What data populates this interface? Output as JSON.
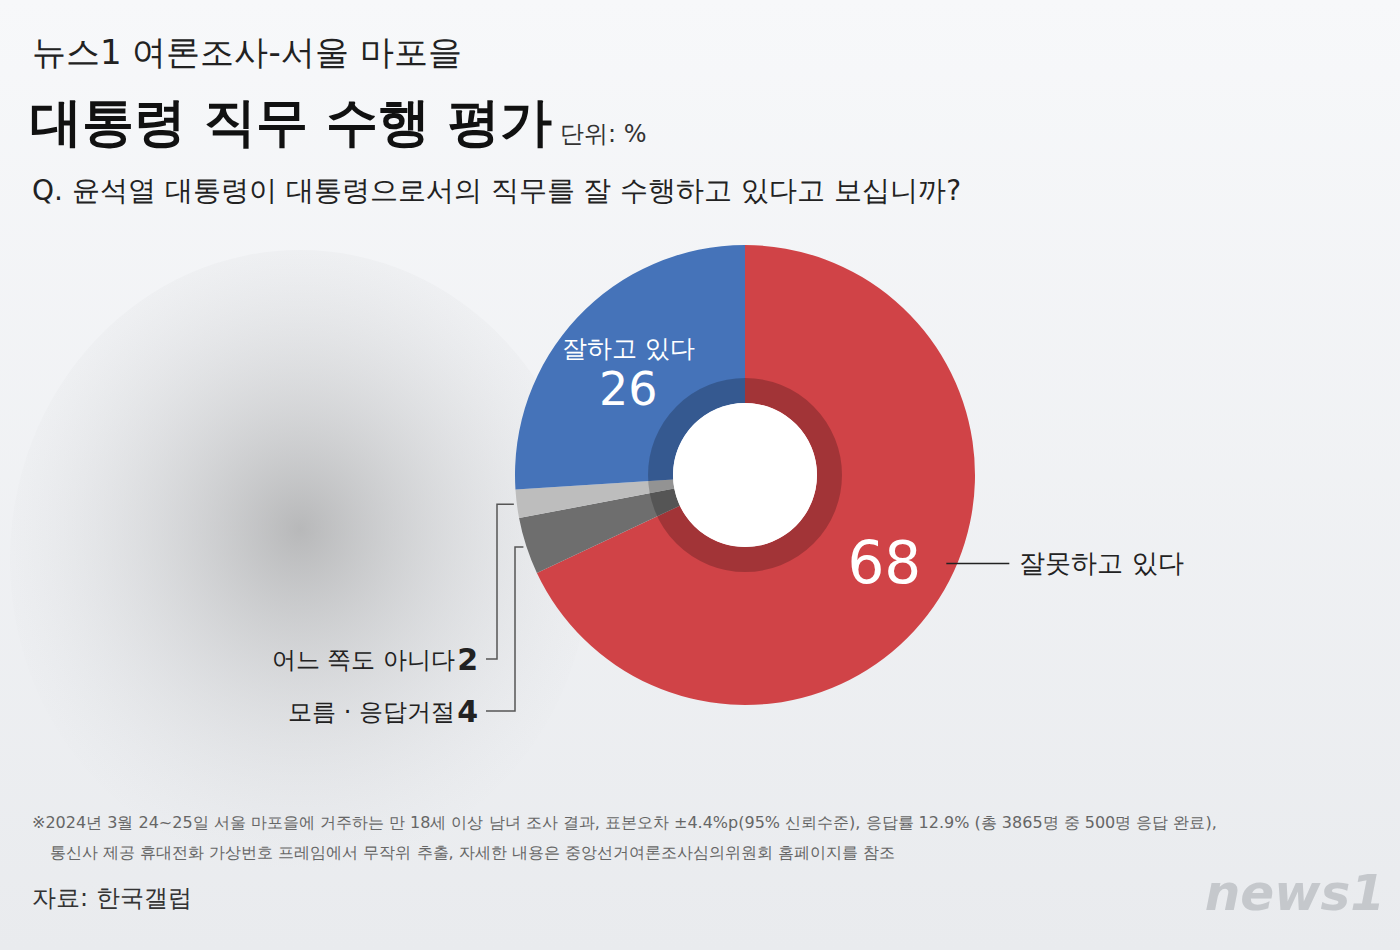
{
  "chart_data": {
    "type": "donut",
    "supertitle": "뉴스1 여론조사-서울 마포을",
    "title": "대통령 직무 수행 평가",
    "unit": "단위: %",
    "question": "Q. 윤석열 대통령이 대통령으로서의 직무를 잘 수행하고 있다고 보십니까?",
    "categories": [
      "잘못하고 있다",
      "모름 · 응답거절",
      "어느 쪽도 아니다",
      "잘하고 있다"
    ],
    "values": [
      68,
      4,
      2,
      26
    ],
    "colors": [
      "#d04347",
      "#6e6e6e",
      "#bdbdbd",
      "#4573b9"
    ],
    "data_labels": true,
    "notes": [
      "※2024년 3월 24~25일 서울 마포을에 거주하는 만 18세 이상 남녀 조사 결과, 표본오차 ±4.4%p(95% 신뢰수준), 응답률 12.9% (총 3865명 중 500명 응답 완료),",
      "통신사 제공 휴대전화 가상번호 프레임에서 무작위 추출, 자세한 내용은 중앙선거여론조사심의위원회 홈페이지를 참조"
    ],
    "source": "자료: 한국갤럽",
    "logo": "news1"
  }
}
